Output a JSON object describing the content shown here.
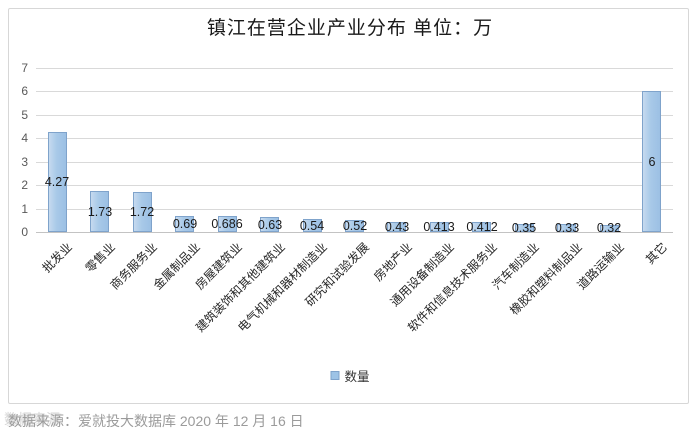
{
  "chart_data": {
    "type": "bar",
    "title": "镇江在营企业产业分布 单位：万",
    "categories": [
      "批发业",
      "零售业",
      "商务服务业",
      "金属制品业",
      "房屋建筑业",
      "建筑装饰和其他建筑业",
      "电气机械和器材制造业",
      "研究和试验发展",
      "房地产业",
      "通用设备制造业",
      "软件和信息技术服务业",
      "汽车制造业",
      "橡胶和塑料制品业",
      "道路运输业",
      "其它"
    ],
    "values": [
      4.27,
      1.73,
      1.72,
      0.69,
      0.686,
      0.63,
      0.54,
      0.52,
      0.43,
      0.413,
      0.412,
      0.35,
      0.33,
      0.32,
      6
    ],
    "value_labels": [
      "4.27",
      "1.73",
      "1.72",
      "0.69",
      "0.686",
      "0.63",
      "0.54",
      "0.52",
      "0.43",
      "0.413",
      "0.412",
      "0.35",
      "0.33",
      "0.32",
      "6"
    ],
    "ylabel": "",
    "xlabel": "",
    "ylim": [
      0,
      7
    ],
    "yticks": [
      0,
      1,
      2,
      3,
      4,
      5,
      6,
      7
    ],
    "grid": true,
    "legend_position": "bottom",
    "legend": [
      {
        "name": "数量",
        "color": "#9dc3e6"
      }
    ],
    "colors": {
      "bar_fill": "#9dc3e6",
      "bar_fill_highlight": "#c6daef",
      "bar_border": "#7fa3cb",
      "gridline": "#d9d9d9",
      "axis_line": "#c3c3c3"
    }
  },
  "source": {
    "text": "数据来源：爱就投大数据库 2020 年 12 月 16 日",
    "watermark": "数据来源"
  }
}
